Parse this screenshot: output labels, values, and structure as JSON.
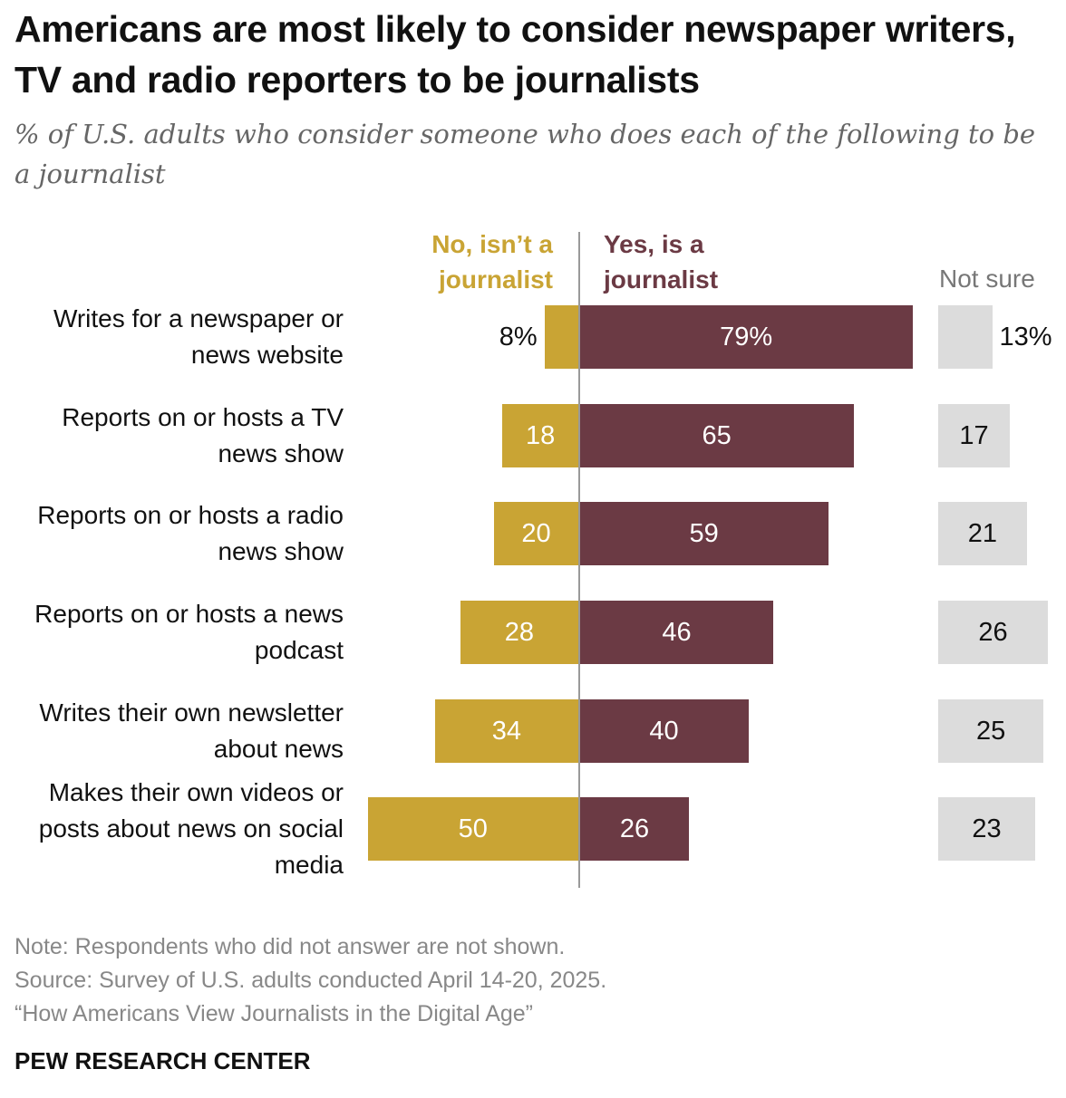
{
  "title": "Americans are most likely to consider newspaper writers, TV and radio reporters to be journalists",
  "subtitle": "% of U.S. adults who consider someone who does each of the following to be a journalist",
  "chart_data": {
    "type": "bar",
    "orientation": "horizontal-diverging",
    "categories": [
      "Writes for a newspaper or news website",
      "Reports on or hosts a TV news show",
      "Reports on or hosts a radio news show",
      "Reports on or hosts a news podcast",
      "Writes their own newsletter about news",
      "Makes their own videos or posts about news on social media"
    ],
    "series": [
      {
        "name": "No, isn’t a journalist",
        "color": "#C9A434",
        "values": [
          8,
          18,
          20,
          28,
          34,
          50
        ]
      },
      {
        "name": "Yes, is a journalist",
        "color": "#6B3A44",
        "values": [
          79,
          65,
          59,
          46,
          40,
          26
        ]
      },
      {
        "name": "Not sure",
        "color": "#DCDCDC",
        "values": [
          13,
          17,
          21,
          26,
          25,
          23
        ]
      }
    ],
    "first_row_labels": {
      "no": "8%",
      "yes": "79%",
      "ns": "13%"
    },
    "xlim": [
      0,
      100
    ]
  },
  "footer": {
    "note": "Note: Respondents who did not answer are not shown.",
    "source": "Source: Survey of U.S. adults conducted April 14-20, 2025.",
    "report": "“How Americans View Journalists in the Digital Age”",
    "brand": "PEW RESEARCH CENTER"
  }
}
